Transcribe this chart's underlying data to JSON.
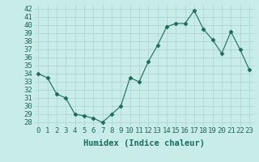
{
  "x": [
    0,
    1,
    2,
    3,
    4,
    5,
    6,
    7,
    8,
    9,
    10,
    11,
    12,
    13,
    14,
    15,
    16,
    17,
    18,
    19,
    20,
    21,
    22,
    23
  ],
  "y": [
    34,
    33.5,
    31.5,
    31,
    29,
    28.8,
    28.5,
    28,
    29,
    30,
    33.5,
    33,
    35.5,
    37.5,
    39.8,
    40.2,
    40.2,
    41.8,
    39.5,
    38.2,
    36.5,
    39.2,
    37,
    34.5
  ],
  "line_color": "#1a6b5e",
  "marker": "D",
  "marker_size": 2.5,
  "bg_color": "#c8ece8",
  "grid_color": "#aad4ce",
  "xlabel": "Humidex (Indice chaleur)",
  "ylabel_ticks": [
    28,
    29,
    30,
    31,
    32,
    33,
    34,
    35,
    36,
    37,
    38,
    39,
    40,
    41,
    42
  ],
  "ylim": [
    27.5,
    42.5
  ],
  "xlim": [
    -0.5,
    23.5
  ],
  "tick_fontsize": 6.5,
  "xlabel_fontsize": 7.5
}
